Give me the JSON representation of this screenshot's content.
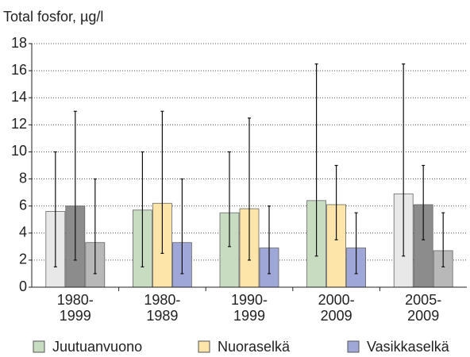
{
  "chart_data": {
    "type": "bar",
    "title": "Total fosfor, µg/l",
    "categories": [
      "1980-1999",
      "1980-1989",
      "1990-1999",
      "2000-2009",
      "2005-2009"
    ],
    "series": [
      {
        "name": "Juutuanvuono",
        "color": "#c8dcc2",
        "colors": [
          "#e8e8e8",
          "#c8dcc2",
          "#c8dcc2",
          "#c8dcc2",
          "#e8e8e8"
        ],
        "values": [
          5.6,
          5.7,
          5.5,
          6.4,
          6.9
        ],
        "low": [
          1.5,
          1.5,
          3,
          2.3,
          2.3
        ],
        "high": [
          10,
          10,
          10,
          16.5,
          16.5
        ]
      },
      {
        "name": "Nuoraselkä",
        "color": "#fde4a8",
        "colors": [
          "#8c8c8c",
          "#fde4a8",
          "#fde4a8",
          "#fde4a8",
          "#8c8c8c"
        ],
        "values": [
          6.0,
          6.2,
          5.8,
          6.1,
          6.1
        ],
        "low": [
          2,
          2.5,
          2,
          3.5,
          3.5
        ],
        "high": [
          13,
          13,
          12.5,
          9,
          9
        ]
      },
      {
        "name": "Vasikkaselkä",
        "color": "#9fa6d8",
        "colors": [
          "#b8b8b8",
          "#9fa6d8",
          "#9fa6d8",
          "#9fa6d8",
          "#b8b8b8"
        ],
        "values": [
          3.3,
          3.3,
          2.9,
          2.9,
          2.7
        ],
        "low": [
          1,
          1,
          1,
          1,
          1.5
        ],
        "high": [
          8,
          8,
          6,
          5.5,
          5.5
        ]
      }
    ],
    "ylim": [
      0,
      18
    ],
    "yticks": [
      0,
      2,
      4,
      6,
      8,
      10,
      12,
      14,
      16,
      18
    ],
    "grid": true
  }
}
